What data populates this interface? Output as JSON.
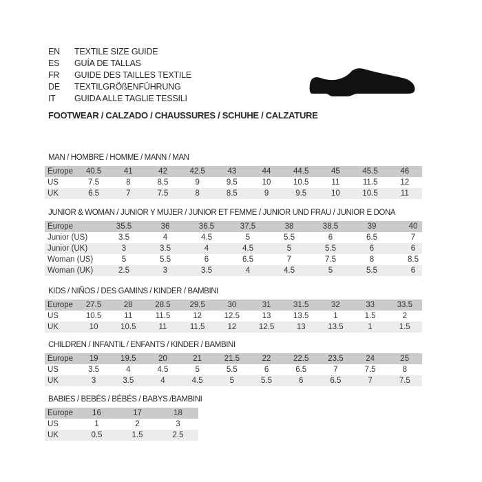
{
  "languages": [
    {
      "code": "EN",
      "title": "TEXTILE SIZE GUIDE"
    },
    {
      "code": "ES",
      "title": "GUÍA DE TALLAS"
    },
    {
      "code": "FR",
      "title": "GUIDE DES TAILLES TEXTILE"
    },
    {
      "code": "DE",
      "title": "TEXTILGRÖßENFÜHRUNG"
    },
    {
      "code": "IT",
      "title": "GUIDA ALLE TAGLIE TESSILI"
    }
  ],
  "footwear_title": "FOOTWEAR / CALZADO / CHAUSSURES / SCHUHE / CALZATURE",
  "icon": "shoe-icon",
  "sections": [
    {
      "title": "MAN / HOMBRE / HOMME / MANN / MAN",
      "rows": [
        {
          "label": "Europe",
          "values": [
            "40.5",
            "41",
            "42",
            "42.5",
            "43",
            "44",
            "44.5",
            "45",
            "45.5",
            "46"
          ]
        },
        {
          "label": "US",
          "values": [
            "7.5",
            "8",
            "8.5",
            "9",
            "9.5",
            "10",
            "10.5",
            "11",
            "11.5",
            "12"
          ]
        },
        {
          "label": "UK",
          "values": [
            "6.5",
            "7",
            "7.5",
            "8",
            "8.5",
            "9",
            "9.5",
            "10",
            "10.5",
            "11"
          ]
        }
      ]
    },
    {
      "title": "JUNIOR & WOMAN / JUNIOR Y MUJER / JUNIOR ET FEMME / JUNIOR UND FRAU / JUNIOR E DONA",
      "rows": [
        {
          "label": "Europe",
          "values": [
            "35.5",
            "36",
            "36.5",
            "37.5",
            "38",
            "38.5",
            "39",
            "40"
          ]
        },
        {
          "label": "Junior (US)",
          "values": [
            "3.5",
            "4",
            "4.5",
            "5",
            "5.5",
            "6",
            "6.5",
            "7"
          ]
        },
        {
          "label": "Junior (UK)",
          "values": [
            "3",
            "3.5",
            "4",
            "4.5",
            "5",
            "5.5",
            "6",
            "6"
          ]
        },
        {
          "label": "Woman (US)",
          "values": [
            "5",
            "5.5",
            "6",
            "6.5",
            "7",
            "7.5",
            "8",
            "8.5"
          ]
        },
        {
          "label": "Woman (UK)",
          "values": [
            "2.5",
            "3",
            "3.5",
            "4",
            "4.5",
            "5",
            "5.5",
            "6"
          ]
        }
      ]
    },
    {
      "title": "KIDS / NIÑOS / DES GAMINS / KINDER / BAMBINI",
      "rows": [
        {
          "label": "Europe",
          "values": [
            "27.5",
            "28",
            "28.5",
            "29.5",
            "30",
            "31",
            "31.5",
            "32",
            "33",
            "33.5"
          ]
        },
        {
          "label": "US",
          "values": [
            "10.5",
            "11",
            "11.5",
            "12",
            "12.5",
            "13",
            "13.5",
            "1",
            "1.5",
            "2"
          ]
        },
        {
          "label": "UK",
          "values": [
            "10",
            "10.5",
            "11",
            "11.5",
            "12",
            "12.5",
            "13",
            "13.5",
            "1",
            "1.5"
          ]
        }
      ]
    },
    {
      "title": "CHILDREN / INFANTIL / ENFANTS / KINDER / BAMBINI",
      "rows": [
        {
          "label": "Europe",
          "values": [
            "19",
            "19.5",
            "20",
            "21",
            "21.5",
            "22",
            "22.5",
            "23.5",
            "24",
            "25"
          ]
        },
        {
          "label": "US",
          "values": [
            "3.5",
            "4",
            "4.5",
            "5",
            "5.5",
            "6",
            "6.5",
            "7",
            "7.5",
            "8"
          ]
        },
        {
          "label": "UK",
          "values": [
            "3",
            "3.5",
            "4",
            "4.5",
            "5",
            "5.5",
            "6",
            "6.5",
            "7",
            "7.5"
          ]
        }
      ]
    },
    {
      "title": "BABIES  / BEBÉS / BÉBÉS / BABYS /BAMBINI",
      "rows": [
        {
          "label": "Europe",
          "values": [
            "16",
            "17",
            "18"
          ]
        },
        {
          "label": "US",
          "values": [
            "1",
            "2",
            "3"
          ]
        },
        {
          "label": "UK",
          "values": [
            "0.5",
            "1.5",
            "2.5"
          ]
        }
      ]
    }
  ]
}
